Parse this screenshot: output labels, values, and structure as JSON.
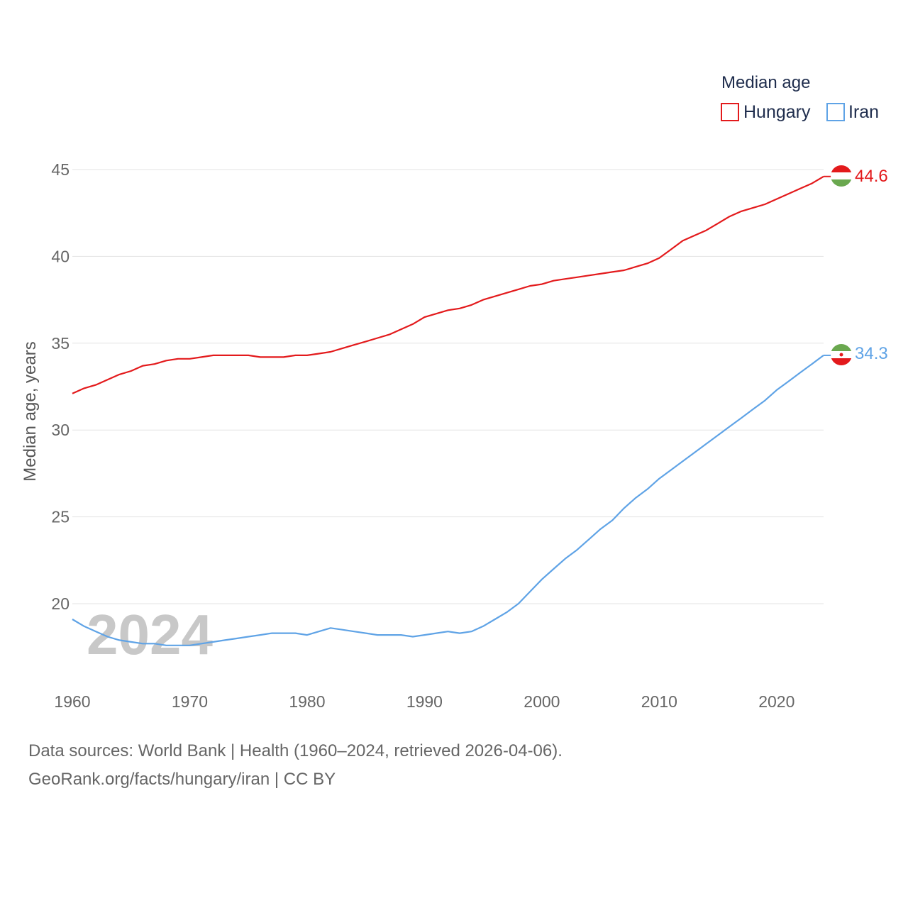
{
  "chart_data": {
    "type": "line",
    "legend_title": "Median age",
    "ylabel": "Median age, years",
    "xlabel": "",
    "xlim": [
      1960,
      2024
    ],
    "ylim": [
      16,
      46
    ],
    "y_ticks": [
      20,
      25,
      30,
      35,
      40,
      45
    ],
    "x_ticks": [
      1960,
      1970,
      1980,
      1990,
      2000,
      2010,
      2020
    ],
    "grid": true,
    "legend_position": "top-right",
    "current_year": "2024",
    "x": [
      1960,
      1961,
      1962,
      1963,
      1964,
      1965,
      1966,
      1967,
      1968,
      1969,
      1970,
      1971,
      1972,
      1973,
      1974,
      1975,
      1976,
      1977,
      1978,
      1979,
      1980,
      1981,
      1982,
      1983,
      1984,
      1985,
      1986,
      1987,
      1988,
      1989,
      1990,
      1991,
      1992,
      1993,
      1994,
      1995,
      1996,
      1997,
      1998,
      1999,
      2000,
      2001,
      2002,
      2003,
      2004,
      2005,
      2006,
      2007,
      2008,
      2009,
      2010,
      2011,
      2012,
      2013,
      2014,
      2015,
      2016,
      2017,
      2018,
      2019,
      2020,
      2021,
      2022,
      2023,
      2024
    ],
    "series": [
      {
        "name": "Hungary",
        "color": "#e31a1c",
        "end_label": "44.6",
        "values": [
          32.1,
          32.4,
          32.6,
          32.9,
          33.2,
          33.4,
          33.7,
          33.8,
          34.0,
          34.1,
          34.1,
          34.2,
          34.3,
          34.3,
          34.3,
          34.3,
          34.2,
          34.2,
          34.2,
          34.3,
          34.3,
          34.4,
          34.5,
          34.7,
          34.9,
          35.1,
          35.3,
          35.5,
          35.8,
          36.1,
          36.5,
          36.7,
          36.9,
          37.0,
          37.2,
          37.5,
          37.7,
          37.9,
          38.1,
          38.3,
          38.4,
          38.6,
          38.7,
          38.8,
          38.9,
          39.0,
          39.1,
          39.2,
          39.4,
          39.6,
          39.9,
          40.4,
          40.9,
          41.2,
          41.5,
          41.9,
          42.3,
          42.6,
          42.8,
          43.0,
          43.3,
          43.6,
          43.9,
          44.2,
          44.6
        ]
      },
      {
        "name": "Iran",
        "color": "#5fa3e6",
        "end_label": "34.3",
        "values": [
          19.1,
          18.7,
          18.4,
          18.1,
          17.9,
          17.8,
          17.7,
          17.7,
          17.6,
          17.6,
          17.6,
          17.7,
          17.8,
          17.9,
          18.0,
          18.1,
          18.2,
          18.3,
          18.3,
          18.3,
          18.2,
          18.4,
          18.6,
          18.5,
          18.4,
          18.3,
          18.2,
          18.2,
          18.2,
          18.1,
          18.2,
          18.3,
          18.4,
          18.3,
          18.4,
          18.7,
          19.1,
          19.5,
          20.0,
          20.7,
          21.4,
          22.0,
          22.6,
          23.1,
          23.7,
          24.3,
          24.8,
          25.5,
          26.1,
          26.6,
          27.2,
          27.7,
          28.2,
          28.7,
          29.2,
          29.7,
          30.2,
          30.7,
          31.2,
          31.7,
          32.3,
          32.8,
          33.3,
          33.8,
          34.3
        ]
      }
    ]
  },
  "footer": {
    "sources": "Data sources: World Bank | Health (1960–2024, retrieved 2026-04-06).",
    "attribution": "GeoRank.org/facts/hungary/iran | CC BY"
  }
}
